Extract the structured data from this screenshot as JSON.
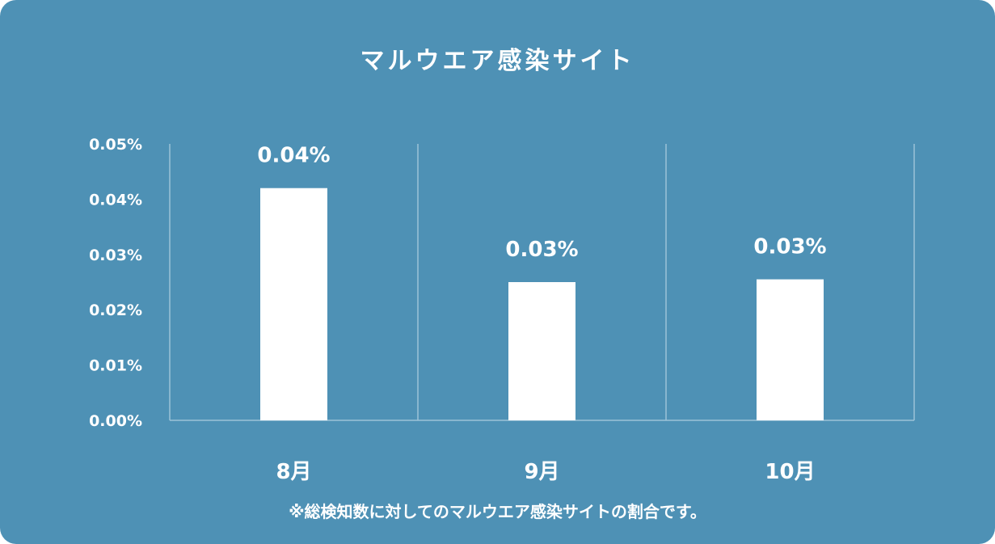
{
  "chart_data": {
    "type": "bar",
    "title": "マルウエア感染サイト",
    "categories": [
      "8月",
      "9月",
      "10月"
    ],
    "values": [
      0.042,
      0.025,
      0.0255
    ],
    "value_labels": [
      "0.04%",
      "0.03%",
      "0.03%"
    ],
    "y_ticks": [
      "0.00%",
      "0.01%",
      "0.02%",
      "0.03%",
      "0.04%",
      "0.05%"
    ],
    "ylim": [
      0,
      0.05
    ],
    "unit": "%",
    "grid": "vertical",
    "footnote": "※総検知数に対してのマルウエア感染サイトの割合です。"
  },
  "colors": {
    "background": "#4e91b5",
    "bar": "#ffffff",
    "grid": "#9cc3d8",
    "text": "#ffffff"
  }
}
